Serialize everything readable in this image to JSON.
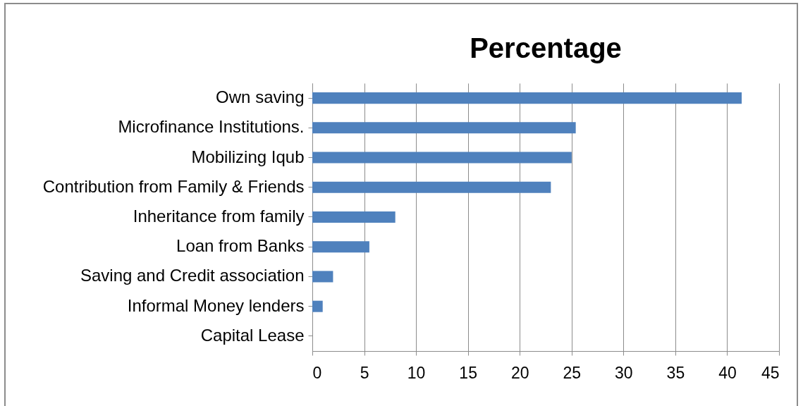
{
  "chart_data": {
    "type": "bar",
    "orientation": "horizontal",
    "title": "Percentage",
    "categories": [
      "Own saving",
      "Microfinance Institutions.",
      "Mobilizing Iqub",
      "Contribution from Family & Friends",
      "Inheritance from family",
      "Loan from Banks",
      "Saving and Credit association ",
      "Informal Money lenders",
      "Capital Lease"
    ],
    "values": [
      41.4,
      25.4,
      25,
      23,
      8,
      5.5,
      2,
      1,
      0
    ],
    "color": "#4f81bd",
    "xlim": [
      0,
      45
    ],
    "xticks": [
      0,
      5,
      10,
      15,
      20,
      25,
      30,
      35,
      40,
      45
    ],
    "grid": "x"
  }
}
